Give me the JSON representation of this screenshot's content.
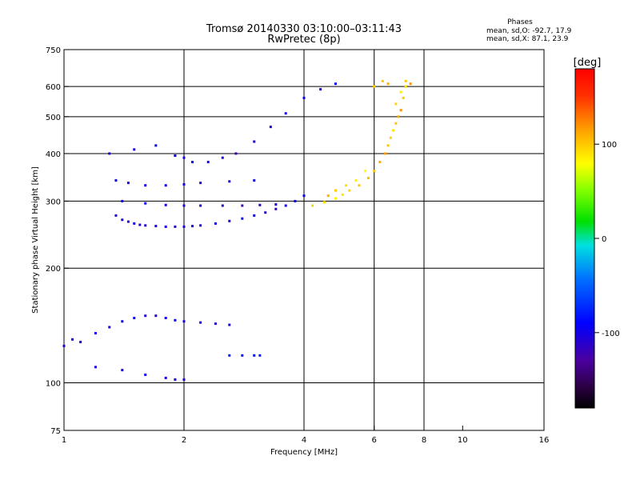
{
  "chart_data": {
    "type": "scatter",
    "title": "Tromsø 20140330 03:10:00–03:11:43",
    "subtitle": "RwPretec (8p)",
    "xlabel": "Frequency [MHz]",
    "ylabel": "Stationary phase Virtual Height [km]",
    "x_scale": "log",
    "y_scale": "log",
    "xlim": [
      1,
      16
    ],
    "ylim": [
      75,
      750
    ],
    "x_ticks": [
      1,
      2,
      4,
      6,
      8,
      10,
      16
    ],
    "y_ticks": [
      75,
      100,
      200,
      300,
      400,
      500,
      600,
      750
    ],
    "x_gridlines": [
      2,
      4,
      6,
      8
    ],
    "y_gridlines": [
      100,
      200,
      300,
      400,
      500,
      600
    ],
    "grid": true,
    "legend": {
      "title": "Phases",
      "lines": [
        "mean, sd,O: -92.7, 17.9",
        "mean, sd,X:  87.1, 23.9"
      ]
    },
    "colorbar": {
      "label": "[deg]",
      "range": [
        -180,
        180
      ],
      "ticks": [
        100,
        0,
        -100
      ],
      "colormap": "rainbow"
    },
    "series": [
      {
        "x": [
          1.35,
          1.4,
          1.45,
          1.5,
          1.55,
          1.6,
          1.7,
          1.8,
          1.9,
          2.0,
          2.1,
          2.2,
          2.4,
          2.6,
          2.8,
          3.0,
          3.2,
          3.4,
          3.6,
          3.8,
          4.0,
          1.4,
          1.6,
          1.8,
          2.0,
          2.2,
          2.5,
          2.8,
          3.1,
          3.4,
          1.35,
          1.45,
          1.6,
          1.8,
          2.0,
          2.2,
          2.6,
          3.0,
          1.9,
          2.0,
          2.1,
          2.3,
          2.5,
          2.7,
          3.0,
          3.3,
          3.6,
          4.0,
          4.4,
          4.8,
          1.0,
          1.05,
          1.1,
          1.2,
          1.3,
          1.4,
          1.5,
          1.6,
          1.7,
          1.8,
          1.9,
          2.0,
          2.2,
          2.4,
          2.6,
          1.2,
          1.4,
          1.6,
          1.8,
          1.9,
          2.0,
          2.6,
          2.8,
          3.0,
          3.1,
          1.3,
          1.5,
          1.7,
          1.9
        ],
        "y": [
          275,
          268,
          265,
          262,
          260,
          259,
          258,
          257,
          257,
          257,
          258,
          259,
          262,
          266,
          270,
          275,
          280,
          286,
          292,
          300,
          310,
          300,
          296,
          293,
          292,
          292,
          292,
          292,
          293,
          294,
          340,
          335,
          330,
          330,
          332,
          335,
          338,
          340,
          395,
          390,
          380,
          380,
          390,
          400,
          430,
          470,
          510,
          560,
          590,
          610,
          125,
          130,
          128,
          135,
          140,
          145,
          148,
          150,
          150,
          148,
          146,
          145,
          144,
          143,
          142,
          110,
          108,
          105,
          103,
          102,
          102,
          118,
          118,
          118,
          118,
          400,
          410,
          420,
          395
        ],
        "phase": [
          -110,
          -105,
          -110,
          -100,
          -105,
          -110,
          -100,
          -105,
          -110,
          -100,
          -105,
          -110,
          -100,
          -105,
          -95,
          -100,
          -110,
          -120,
          -100,
          -95,
          -90,
          -90,
          -95,
          -100,
          -105,
          -110,
          -115,
          -120,
          -110,
          -105,
          -100,
          -105,
          -100,
          -95,
          -100,
          -110,
          -105,
          -100,
          -105,
          -100,
          -95,
          -100,
          -110,
          -120,
          -110,
          -105,
          -100,
          -95,
          -100,
          -90,
          -105,
          -100,
          -110,
          -105,
          -100,
          -95,
          -100,
          -105,
          -110,
          -100,
          -95,
          -100,
          -105,
          -110,
          -100,
          -105,
          -100,
          -95,
          -100,
          -105,
          -110,
          -80,
          -85,
          -90,
          -80,
          -100,
          -105,
          -95,
          -100
        ]
      },
      {
        "x": [
          4.2,
          4.5,
          4.8,
          5.0,
          5.2,
          5.5,
          5.8,
          6.0,
          6.2,
          6.4,
          6.5,
          6.6,
          6.7,
          6.8,
          6.9,
          7.0,
          7.1,
          7.2,
          6.5,
          6.3,
          6.0,
          5.7,
          5.4,
          5.1,
          4.8,
          4.6,
          6.8,
          7.0,
          7.2,
          7.4
        ],
        "y": [
          292,
          298,
          305,
          312,
          320,
          330,
          345,
          360,
          380,
          400,
          420,
          440,
          460,
          480,
          500,
          520,
          560,
          600,
          610,
          620,
          600,
          360,
          340,
          330,
          320,
          310,
          540,
          580,
          620,
          610
        ],
        "phase": [
          95,
          90,
          85,
          90,
          95,
          100,
          105,
          100,
          110,
          115,
          100,
          95,
          90,
          100,
          110,
          120,
          100,
          90,
          110,
          100,
          95,
          80,
          85,
          90,
          100,
          110,
          95,
          85,
          100,
          120
        ]
      }
    ]
  }
}
